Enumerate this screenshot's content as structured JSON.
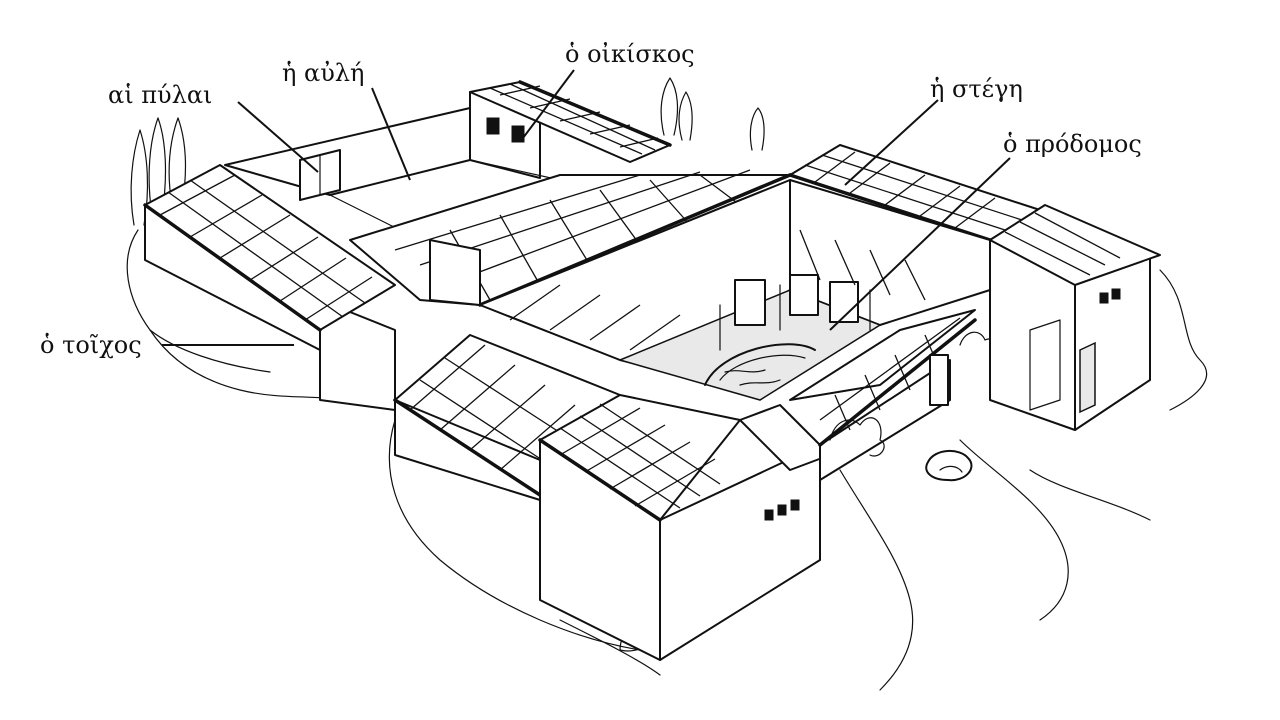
{
  "labels": {
    "gates": "αἱ πύλαι",
    "courtyard": "ἡ αὐλή",
    "storeroom": "ὁ οἰκίσκος",
    "roof": "ἡ στέγη",
    "portico": "ὁ πρόδομος",
    "wall": "ὁ τοῖχος"
  },
  "colors": {
    "ink": "#111111",
    "paper": "#ffffff"
  }
}
